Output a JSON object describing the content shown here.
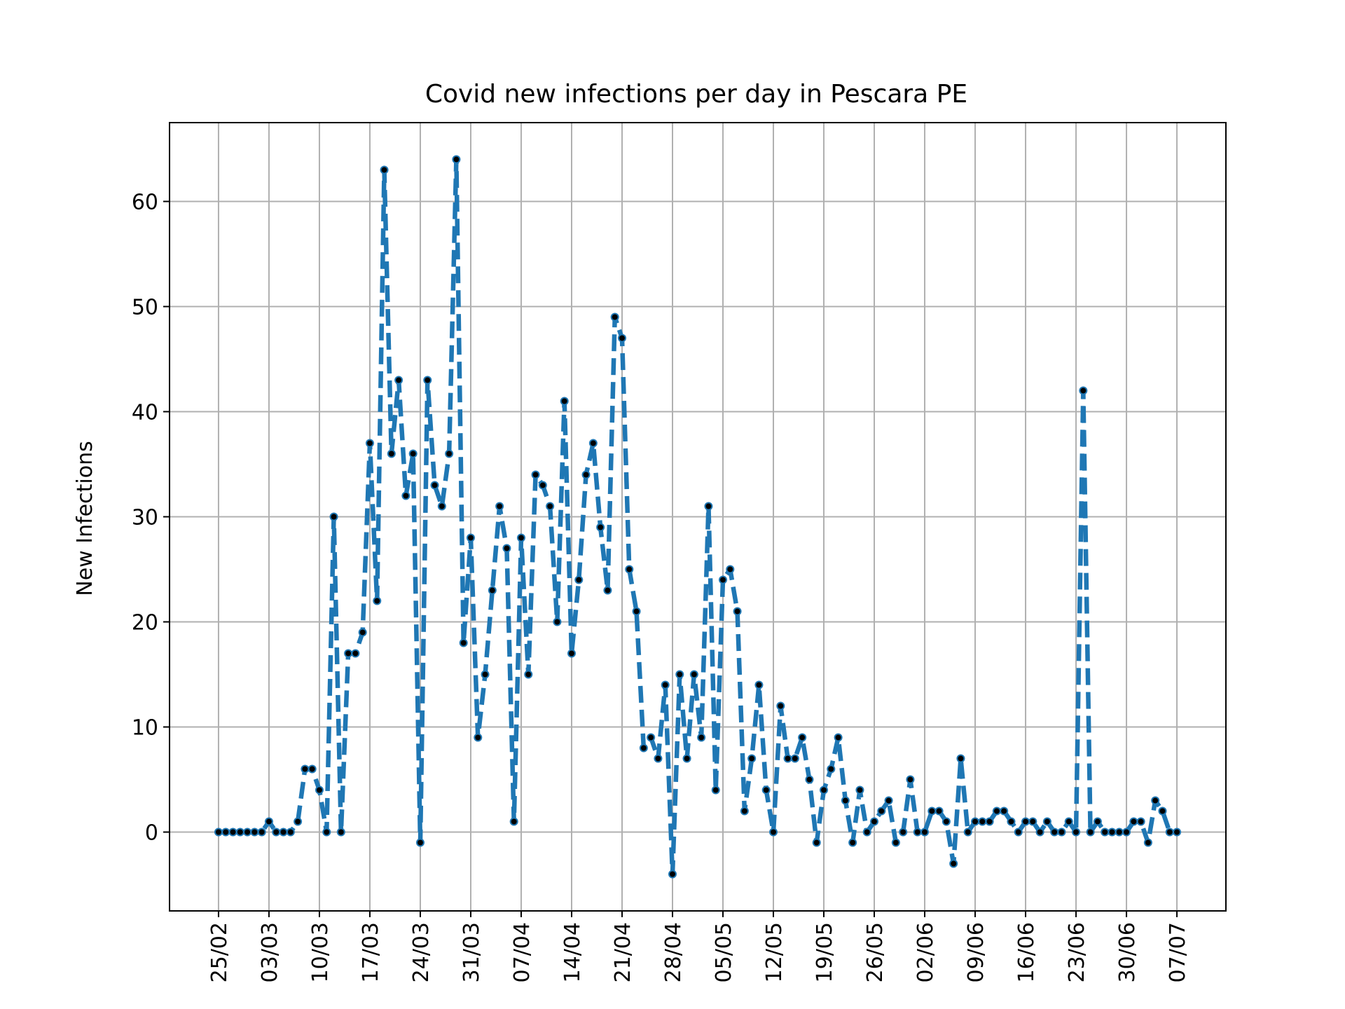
{
  "chart_data": {
    "type": "line",
    "title": "Covid new infections per day in Pescara PE",
    "xlabel": "",
    "ylabel": "New Infections",
    "ylim": [
      -7.5,
      67.5
    ],
    "yticks": [
      0,
      10,
      20,
      30,
      40,
      50,
      60
    ],
    "grid": true,
    "x_start_date": "2020-02-25",
    "xtick_day_offsets": [
      0,
      7,
      14,
      21,
      28,
      35,
      42,
      49,
      56,
      63,
      70,
      77,
      84,
      91,
      98,
      105,
      112,
      119,
      126,
      133
    ],
    "xtick_labels": [
      "25/02",
      "03/03",
      "10/03",
      "17/03",
      "24/03",
      "31/03",
      "07/04",
      "14/04",
      "21/04",
      "28/04",
      "05/05",
      "12/05",
      "19/05",
      "26/05",
      "02/06",
      "09/06",
      "16/06",
      "23/06",
      "30/06",
      "07/07"
    ],
    "colors": {
      "line": "#1f77b4",
      "marker": "#000000",
      "grid": "#b0b0b0"
    },
    "series": [
      {
        "name": "New Infections",
        "values": [
          0,
          0,
          0,
          0,
          0,
          0,
          0,
          1,
          0,
          0,
          0,
          1,
          6,
          6,
          4,
          0,
          30,
          0,
          17,
          17,
          19,
          37,
          22,
          63,
          36,
          43,
          32,
          36,
          -1,
          43,
          33,
          31,
          36,
          64,
          18,
          28,
          9,
          15,
          23,
          31,
          27,
          1,
          28,
          15,
          34,
          33,
          31,
          20,
          41,
          17,
          24,
          34,
          37,
          29,
          23,
          49,
          47,
          25,
          21,
          8,
          9,
          7,
          14,
          -4,
          15,
          7,
          15,
          9,
          31,
          4,
          24,
          25,
          21,
          2,
          7,
          14,
          4,
          0,
          12,
          7,
          7,
          9,
          5,
          -1,
          4,
          6,
          9,
          3,
          -1,
          4,
          0,
          1,
          2,
          3,
          -1,
          0,
          5,
          0,
          0,
          2,
          2,
          1,
          -3,
          7,
          0,
          1,
          1,
          1,
          2,
          2,
          1,
          0,
          1,
          1,
          0,
          1,
          0,
          0,
          1,
          0,
          42,
          0,
          1,
          0,
          0,
          0,
          0,
          1,
          1,
          -1,
          3,
          2,
          0,
          0
        ]
      }
    ]
  }
}
